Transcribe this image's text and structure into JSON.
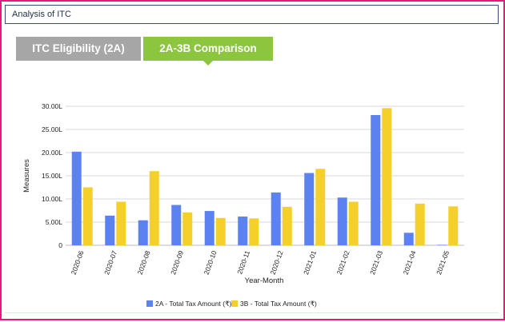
{
  "page": {
    "title": "Analysis of ITC"
  },
  "tabs": [
    {
      "label": "ITC Eligibility (2A)",
      "active": false
    },
    {
      "label": "2A-3B Comparison",
      "active": true
    }
  ],
  "colors": {
    "frame": "#e8177a",
    "tab_active": "#8cc63f",
    "tab_inactive": "#a6a6a6",
    "series_2a": "#5b82f0",
    "series_3b": "#f5cf2a"
  },
  "chart_data": {
    "type": "bar",
    "xlabel": "Year-Month",
    "ylabel": "Measures",
    "ylim": [
      0,
      30
    ],
    "yticks": [
      0,
      5,
      10,
      15,
      20,
      25,
      30
    ],
    "ytick_labels": [
      "0",
      "5.00L",
      "10.00L",
      "15.00L",
      "20.00L",
      "25.00L",
      "30.00L"
    ],
    "grid": true,
    "legend_position": "bottom",
    "categories": [
      "2020-06",
      "2020-07",
      "2020-08",
      "2020-09",
      "2020-10",
      "2020-11",
      "2020-12",
      "2021-01",
      "2021-02",
      "2021-03",
      "2021-04",
      "2021-05"
    ],
    "series": [
      {
        "name": "2A - Total Tax Amount (₹)",
        "color": "#5b82f0",
        "values": [
          20.2,
          6.4,
          5.4,
          8.7,
          7.4,
          6.2,
          11.4,
          15.6,
          10.3,
          28.1,
          2.7,
          0.1
        ]
      },
      {
        "name": "3B - Total Tax Amount (₹)",
        "color": "#f5cf2a",
        "values": [
          12.5,
          9.4,
          16.0,
          7.1,
          5.9,
          5.8,
          8.3,
          16.5,
          9.4,
          29.6,
          9.0,
          8.4
        ]
      }
    ]
  }
}
